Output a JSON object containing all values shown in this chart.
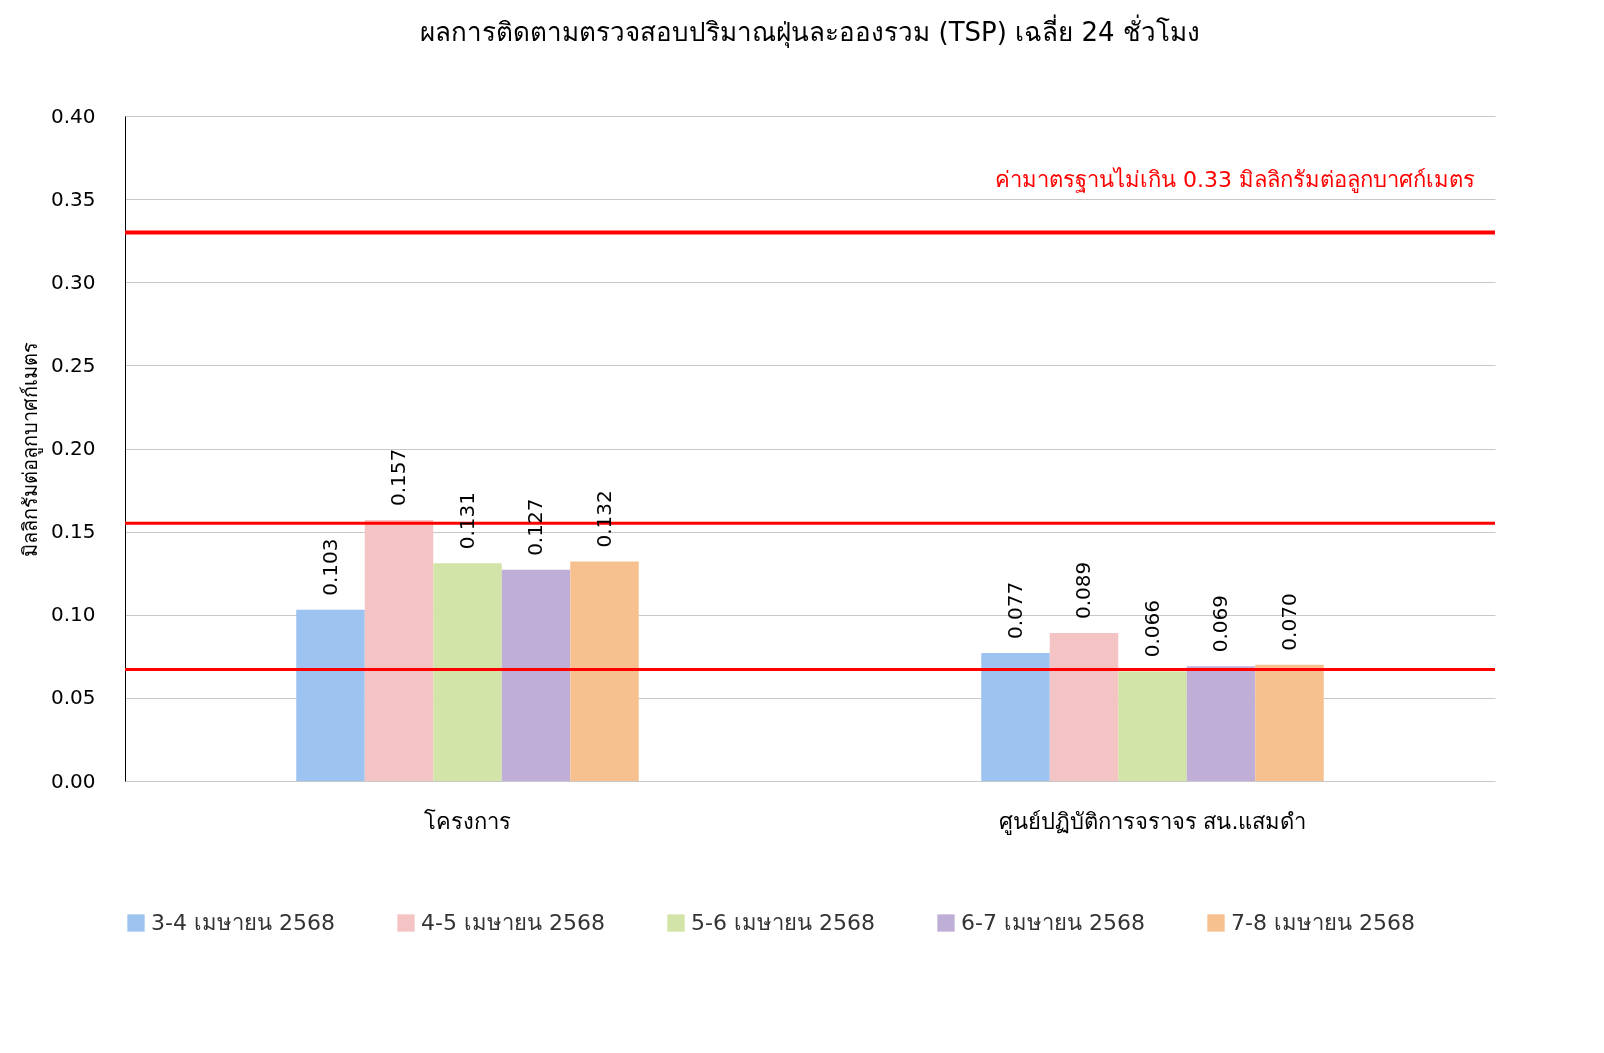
{
  "chart_data": {
    "type": "bar",
    "title": "ผลการติดตามตรวจสอบปริมาณฝุ่นละอองรวม (TSP) เฉลี่ย 24 ชั่วโมง",
    "ylabel": "มิลลิกรัมต่อลูกบาศก์เมตร",
    "categories": [
      "โครงการ",
      "ศูนย์ปฏิบัติการจราจร สน.แสมดำ"
    ],
    "series": [
      {
        "name": "3-4 เมษายน 2568",
        "color": "#9dc3f0",
        "values": [
          0.103,
          0.077
        ],
        "value_labels": [
          "0.103",
          "0.077"
        ]
      },
      {
        "name": "4-5 เมษายน 2568",
        "color": "#f4c4c4",
        "values": [
          0.157,
          0.089
        ],
        "value_labels": [
          "0.157",
          "0.089"
        ]
      },
      {
        "name": "5-6 เมษายน 2568",
        "color": "#d3e4a8",
        "values": [
          0.131,
          0.066
        ],
        "value_labels": [
          "0.131",
          "0.066"
        ]
      },
      {
        "name": "6-7 เมษายน 2568",
        "color": "#bfaed6",
        "values": [
          0.127,
          0.069
        ],
        "value_labels": [
          "0.127",
          "0.069"
        ]
      },
      {
        "name": "7-8 เมษายน 2568",
        "color": "#f7c08f",
        "values": [
          0.132,
          0.07
        ],
        "value_labels": [
          "0.132",
          "0.070"
        ]
      }
    ],
    "ylim": [
      0,
      0.4
    ],
    "yticks": [
      {
        "value": 0,
        "label": "0.00"
      },
      {
        "value": 0.05,
        "label": "0.05"
      },
      {
        "value": 0.1,
        "label": "0.10"
      },
      {
        "value": 0.15,
        "label": "0.15"
      },
      {
        "value": 0.2,
        "label": "0.20"
      },
      {
        "value": 0.25,
        "label": "0.25"
      },
      {
        "value": 0.3,
        "label": "0.30"
      },
      {
        "value": 0.35,
        "label": "0.35"
      },
      {
        "value": 0.4,
        "label": "0.40"
      }
    ],
    "ref_lines": [
      {
        "axis": "y",
        "value": 0.33,
        "label": "ค่ามาตรฐานไม่เกิน 0.33 มิลลิกรัมต่อลูกบาศก์เมตร",
        "color": "#ff0000"
      },
      {
        "axis": "y",
        "value": 0.155,
        "color": "#ff0000"
      },
      {
        "axis": "y",
        "value": 0.067,
        "color": "#ff0000"
      }
    ],
    "grid": "y",
    "legend": "bottom"
  }
}
